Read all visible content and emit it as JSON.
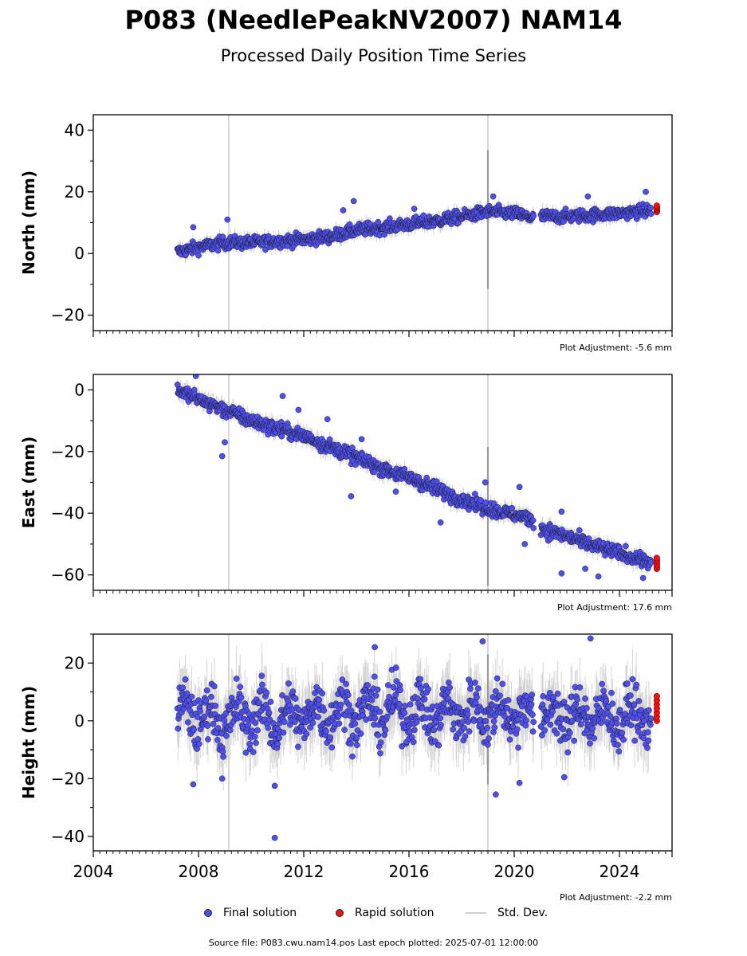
{
  "title": "P083 (NeedlePeakNV2007) NAM14",
  "subtitle": "Processed Daily Position Time Series",
  "legend": {
    "final": "Final solution",
    "rapid": "Rapid solution",
    "stddev": "Std. Dev."
  },
  "source_text": "Source file: P083.cwu.nam14.pos  Last epoch plotted: 2025-07-01 12:00:00",
  "colors": {
    "final": "#4f4ff0",
    "rapid": "#ee1111",
    "stddev": "#c8c8c8",
    "marker_edge": "#1a1a1a"
  },
  "chart_data": [
    {
      "type": "scatter",
      "ylabel": "North (mm)",
      "adjustment": "Plot Adjustment: -5.6 mm",
      "xlim": [
        2004,
        2026
      ],
      "ylim": [
        -25,
        45
      ],
      "yticks": [
        -20,
        0,
        20,
        40
      ],
      "ytick_labels": [
        "−20",
        "0",
        "20",
        "40"
      ],
      "xticks": [
        2004,
        2008,
        2012,
        2016,
        2020,
        2024
      ],
      "xtick_labels": [],
      "vlines": [
        2009.15,
        2019.0
      ],
      "gaps": [
        [
          2020.75,
          2021.0
        ]
      ],
      "series": [
        {
          "name": "Final solution",
          "x": [
            2007.2,
            2008.0,
            2009.0,
            2010.0,
            2011.0,
            2012.0,
            2013.0,
            2014.0,
            2015.0,
            2016.0,
            2017.0,
            2018.0,
            2019.0,
            2020.0,
            2020.7,
            2021.05,
            2022.0,
            2023.0,
            2024.0,
            2025.2
          ],
          "y": [
            0.5,
            2.0,
            3.5,
            3.5,
            4.0,
            4.5,
            5.5,
            7.5,
            8.5,
            9.5,
            10.5,
            12.0,
            13.5,
            13.0,
            11.5,
            12.0,
            12.0,
            12.5,
            13.0,
            14.0
          ],
          "scatter": 1.6
        }
      ],
      "outliers": [
        [
          2007.8,
          8.5
        ],
        [
          2009.1,
          11.0
        ],
        [
          2013.5,
          14.0
        ],
        [
          2013.9,
          17.0
        ],
        [
          2019.2,
          18.5
        ],
        [
          2022.8,
          18.5
        ],
        [
          2025.0,
          20.0
        ],
        [
          2016.2,
          14.5
        ]
      ],
      "rapid": {
        "x": 2025.42,
        "y": [
          13.5,
          15.5
        ]
      }
    },
    {
      "type": "scatter",
      "ylabel": "East (mm)",
      "adjustment": "Plot Adjustment: 17.6 mm",
      "xlim": [
        2004,
        2026
      ],
      "ylim": [
        -65,
        5
      ],
      "yticks": [
        -60,
        -40,
        -20,
        0
      ],
      "ytick_labels": [
        "−60",
        "−40",
        "−20",
        "0"
      ],
      "xticks": [
        2004,
        2008,
        2012,
        2016,
        2020,
        2024
      ],
      "xtick_labels": [],
      "vlines": [
        2009.15,
        2019.0
      ],
      "gaps": [
        [
          2020.75,
          2021.0
        ]
      ],
      "series": [
        {
          "name": "Final solution",
          "x": [
            2007.2,
            2008.0,
            2009.0,
            2010.0,
            2011.0,
            2012.0,
            2013.0,
            2014.0,
            2015.0,
            2016.0,
            2017.0,
            2018.0,
            2019.0,
            2020.0,
            2020.7,
            2021.05,
            2022.0,
            2023.0,
            2024.0,
            2025.2
          ],
          "y": [
            0.0,
            -3.0,
            -6.5,
            -10.0,
            -12.5,
            -15.0,
            -18.5,
            -22.0,
            -25.5,
            -28.5,
            -32.0,
            -35.5,
            -38.5,
            -40.5,
            -42.0,
            -45.0,
            -47.5,
            -50.5,
            -53.0,
            -56.0
          ],
          "scatter": 1.8
        }
      ],
      "outliers": [
        [
          2007.9,
          4.5
        ],
        [
          2008.9,
          -21.5
        ],
        [
          2009.0,
          -17.0
        ],
        [
          2011.2,
          -2.0
        ],
        [
          2011.8,
          -6.5
        ],
        [
          2012.9,
          -9.5
        ],
        [
          2013.8,
          -34.5
        ],
        [
          2014.2,
          -16.0
        ],
        [
          2015.5,
          -33.0
        ],
        [
          2017.2,
          -43.0
        ],
        [
          2018.9,
          -30.0
        ],
        [
          2020.2,
          -31.5
        ],
        [
          2021.8,
          -39.5
        ],
        [
          2021.8,
          -59.5
        ],
        [
          2022.7,
          -58.0
        ],
        [
          2023.2,
          -60.5
        ],
        [
          2024.9,
          -61.0
        ],
        [
          2020.4,
          -50.0
        ]
      ],
      "rapid": {
        "x": 2025.42,
        "y": [
          -58.0,
          -54.5
        ]
      }
    },
    {
      "type": "scatter",
      "ylabel": "Height (mm)",
      "adjustment": "Plot Adjustment: -2.2 mm",
      "xlim": [
        2004,
        2026
      ],
      "ylim": [
        -45,
        30
      ],
      "yticks": [
        -40,
        -20,
        0,
        20
      ],
      "ytick_labels": [
        "−40",
        "−20",
        "0",
        "20"
      ],
      "xticks": [
        2004,
        2008,
        2012,
        2016,
        2020,
        2024
      ],
      "xtick_labels": [
        "2004",
        "2008",
        "2012",
        "2016",
        "2020",
        "2024"
      ],
      "vlines": [
        2009.15,
        2019.0
      ],
      "gaps": [
        [
          2020.75,
          2021.0
        ]
      ],
      "series": [
        {
          "name": "Final solution",
          "x": [
            2007.2,
            2008.0,
            2009.0,
            2010.0,
            2011.0,
            2012.0,
            2013.0,
            2014.0,
            2015.0,
            2016.0,
            2017.0,
            2018.0,
            2019.0,
            2020.0,
            2020.7,
            2021.05,
            2022.0,
            2023.0,
            2024.0,
            2025.2
          ],
          "y": [
            2.0,
            2.0,
            0.0,
            2.0,
            0.0,
            2.0,
            3.0,
            3.0,
            3.0,
            4.0,
            2.0,
            3.0,
            3.0,
            3.0,
            2.0,
            2.0,
            1.0,
            2.0,
            1.0,
            2.0
          ],
          "scatter": 7.0
        }
      ],
      "outliers": [
        [
          2010.9,
          -40.5
        ],
        [
          2010.9,
          -22.5
        ],
        [
          2007.8,
          -22.0
        ],
        [
          2019.3,
          -25.5
        ],
        [
          2018.8,
          27.5
        ],
        [
          2022.9,
          28.5
        ],
        [
          2014.7,
          25.5
        ],
        [
          2020.2,
          -21.5
        ],
        [
          2008.9,
          -20.0
        ],
        [
          2021.9,
          -19.5
        ]
      ],
      "rapid": {
        "x": 2025.42,
        "y": [
          0.0,
          8.5
        ]
      }
    }
  ]
}
